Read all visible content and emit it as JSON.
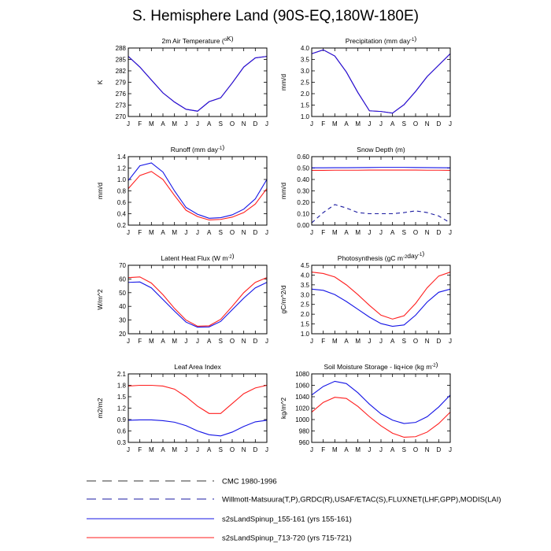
{
  "page": {
    "title": "S. Hemisphere Land (90S-EQ,180W-180E)"
  },
  "colors": {
    "blue": "#1414e6",
    "red": "#ff1e1e",
    "dashed_blue": "#1a1aa0",
    "dashed_black": "#333333"
  },
  "legend": [
    {
      "label": "CMC 1980-1996",
      "style": "dashed",
      "color": "#333333"
    },
    {
      "label": "Willmott-Matsuura(T,P),GRDC(R),USAF/ETAC(S),FLUXNET(LHF,GPP),MODIS(LAI)",
      "style": "dashed",
      "color": "#1a1aa0"
    },
    {
      "label": "s2sLandSpinup_155-161 (yrs 155-161)",
      "style": "solid",
      "color": "#1414e6"
    },
    {
      "label": "s2sLandSpinup_713-720 (yrs 715-721)",
      "style": "solid",
      "color": "#ff1e1e"
    }
  ],
  "chart_data": [
    {
      "type": "line",
      "title": "2m Air Temperature (°K)",
      "ylabel": "K",
      "x": [
        "J",
        "F",
        "M",
        "A",
        "M",
        "J",
        "J",
        "A",
        "S",
        "O",
        "N",
        "D",
        "J"
      ],
      "ylim": [
        270,
        288
      ],
      "yticks": [
        270,
        273,
        276,
        279,
        282,
        285,
        288
      ],
      "yticklabels": [
        "270",
        "273",
        "276",
        "279",
        "282",
        "285",
        "288"
      ],
      "series": [
        {
          "color": "#ff1e1e",
          "style": "solid",
          "values": [
            285.8,
            283.0,
            279.6,
            276.2,
            273.8,
            271.9,
            271.4,
            273.9,
            274.9,
            278.8,
            283.0,
            285.4,
            285.8
          ]
        },
        {
          "color": "#1414e6",
          "style": "solid",
          "values": [
            285.8,
            283.0,
            279.6,
            276.2,
            273.8,
            271.9,
            271.4,
            273.9,
            274.9,
            278.8,
            283.0,
            285.4,
            285.8
          ]
        }
      ]
    },
    {
      "type": "line",
      "title": "Precipitation (mm day-1)",
      "ylabel": "mm/d",
      "x": [
        "J",
        "F",
        "M",
        "A",
        "M",
        "J",
        "J",
        "A",
        "S",
        "O",
        "N",
        "D",
        "J"
      ],
      "ylim": [
        1.0,
        4.0
      ],
      "yticks": [
        1.0,
        1.5,
        2.0,
        2.5,
        3.0,
        3.5,
        4.0
      ],
      "yticklabels": [
        "1.0",
        "1.5",
        "2.0",
        "2.5",
        "3.0",
        "3.5",
        "4.0"
      ],
      "series": [
        {
          "color": "#ff1e1e",
          "style": "solid",
          "values": [
            3.75,
            3.92,
            3.65,
            2.95,
            2.05,
            1.25,
            1.22,
            1.15,
            1.52,
            2.1,
            2.75,
            3.25,
            3.75
          ]
        },
        {
          "color": "#1414e6",
          "style": "solid",
          "values": [
            3.75,
            3.92,
            3.65,
            2.95,
            2.05,
            1.25,
            1.22,
            1.15,
            1.52,
            2.1,
            2.75,
            3.25,
            3.75
          ]
        }
      ]
    },
    {
      "type": "line",
      "title": "Runoff (mm day-1)",
      "ylabel": "mm/d",
      "x": [
        "J",
        "F",
        "M",
        "A",
        "M",
        "J",
        "J",
        "A",
        "S",
        "O",
        "N",
        "D",
        "J"
      ],
      "ylim": [
        0.2,
        1.4
      ],
      "yticks": [
        0.2,
        0.4,
        0.6,
        0.8,
        1.0,
        1.2,
        1.4
      ],
      "yticklabels": [
        "0.2",
        "0.4",
        "0.6",
        "0.8",
        "1.0",
        "1.2",
        "1.4"
      ],
      "series": [
        {
          "color": "#1414e6",
          "style": "solid",
          "values": [
            0.98,
            1.24,
            1.29,
            1.13,
            0.8,
            0.51,
            0.39,
            0.32,
            0.33,
            0.38,
            0.48,
            0.66,
            1.0
          ]
        },
        {
          "color": "#ff1e1e",
          "style": "solid",
          "values": [
            0.84,
            1.07,
            1.14,
            1.0,
            0.72,
            0.46,
            0.35,
            0.29,
            0.3,
            0.34,
            0.42,
            0.57,
            0.84
          ]
        }
      ]
    },
    {
      "type": "line",
      "title": "Snow Depth (m)",
      "ylabel": "mm/d",
      "x": [
        "J",
        "F",
        "M",
        "A",
        "M",
        "J",
        "J",
        "A",
        "S",
        "O",
        "N",
        "D",
        "J"
      ],
      "ylim": [
        0.0,
        0.6
      ],
      "yticks": [
        0.0,
        0.1,
        0.2,
        0.3,
        0.4,
        0.5,
        0.6
      ],
      "yticklabels": [
        "0.00",
        "0.10",
        "0.20",
        "0.30",
        "0.40",
        "0.50",
        "0.60"
      ],
      "series": [
        {
          "color": "#1a1aa0",
          "style": "dashed",
          "values": [
            0.02,
            0.11,
            0.18,
            0.15,
            0.11,
            0.1,
            0.1,
            0.1,
            0.11,
            0.125,
            0.11,
            0.08,
            0.02
          ]
        },
        {
          "color": "#1414e6",
          "style": "solid",
          "values": [
            0.502,
            0.502,
            0.503,
            0.503,
            0.504,
            0.505,
            0.506,
            0.506,
            0.506,
            0.505,
            0.504,
            0.503,
            0.502
          ]
        },
        {
          "color": "#ff1e1e",
          "style": "solid",
          "values": [
            0.48,
            0.48,
            0.481,
            0.481,
            0.481,
            0.482,
            0.482,
            0.482,
            0.482,
            0.482,
            0.481,
            0.481,
            0.48
          ]
        }
      ]
    },
    {
      "type": "line",
      "title": "Latent Heat Flux (W m-2)",
      "ylabel": "W/m^2",
      "x": [
        "J",
        "F",
        "M",
        "A",
        "M",
        "J",
        "J",
        "A",
        "S",
        "O",
        "N",
        "D",
        "J"
      ],
      "ylim": [
        20,
        70
      ],
      "yticks": [
        20,
        30,
        40,
        50,
        60,
        70
      ],
      "yticklabels": [
        "20",
        "30",
        "40",
        "50",
        "60",
        "70"
      ],
      "series": [
        {
          "color": "#1414e6",
          "style": "solid",
          "values": [
            57.5,
            57.8,
            53.5,
            45.0,
            36.5,
            28.5,
            24.8,
            25.0,
            29.0,
            37.5,
            46.0,
            53.5,
            57.5
          ]
        },
        {
          "color": "#ff1e1e",
          "style": "solid",
          "values": [
            61.0,
            61.5,
            57.0,
            48.5,
            38.5,
            30.0,
            25.5,
            25.8,
            30.5,
            40.0,
            50.0,
            57.5,
            61.0
          ]
        }
      ]
    },
    {
      "type": "line",
      "title": "Photosynthesis (gC m-2day-1)",
      "ylabel": "gC/m^2/d",
      "x": [
        "J",
        "F",
        "M",
        "A",
        "M",
        "J",
        "J",
        "A",
        "S",
        "O",
        "N",
        "D",
        "J"
      ],
      "ylim": [
        1.0,
        4.5
      ],
      "yticks": [
        1.0,
        1.5,
        2.0,
        2.5,
        3.0,
        3.5,
        4.0,
        4.5
      ],
      "yticklabels": [
        "1.0",
        "1.5",
        "2.0",
        "2.5",
        "3.0",
        "3.5",
        "4.0",
        "4.5"
      ],
      "series": [
        {
          "color": "#1414e6",
          "style": "solid",
          "values": [
            3.28,
            3.22,
            3.0,
            2.65,
            2.25,
            1.85,
            1.52,
            1.38,
            1.45,
            1.95,
            2.62,
            3.12,
            3.28
          ]
        },
        {
          "color": "#ff1e1e",
          "style": "solid",
          "values": [
            4.15,
            4.08,
            3.9,
            3.5,
            3.0,
            2.45,
            1.95,
            1.75,
            1.92,
            2.55,
            3.35,
            3.95,
            4.15
          ]
        }
      ]
    },
    {
      "type": "line",
      "title": "Leaf Area Index",
      "ylabel": "m2/m2",
      "x": [
        "J",
        "F",
        "M",
        "A",
        "M",
        "J",
        "J",
        "A",
        "S",
        "O",
        "N",
        "D",
        "J"
      ],
      "ylim": [
        0.3,
        2.1
      ],
      "yticks": [
        0.3,
        0.6,
        0.9,
        1.2,
        1.5,
        1.8,
        2.1
      ],
      "yticklabels": [
        "0.3",
        "0.6",
        "0.9",
        "1.2",
        "1.5",
        "1.8",
        "2.1"
      ],
      "series": [
        {
          "color": "#1414e6",
          "style": "solid",
          "values": [
            0.88,
            0.89,
            0.89,
            0.87,
            0.83,
            0.74,
            0.6,
            0.5,
            0.47,
            0.57,
            0.72,
            0.84,
            0.88
          ]
        },
        {
          "color": "#ff1e1e",
          "style": "solid",
          "values": [
            1.78,
            1.8,
            1.8,
            1.78,
            1.7,
            1.5,
            1.25,
            1.06,
            1.06,
            1.32,
            1.58,
            1.73,
            1.8
          ]
        }
      ]
    },
    {
      "type": "line",
      "title": "Soil Moisture Storage - liq+ice (kg m-2)",
      "ylabel": "kg/m^2",
      "x": [
        "J",
        "F",
        "M",
        "A",
        "M",
        "J",
        "J",
        "A",
        "S",
        "O",
        "N",
        "D",
        "J"
      ],
      "ylim": [
        960,
        1080
      ],
      "yticks": [
        960,
        980,
        1000,
        1020,
        1040,
        1060,
        1080
      ],
      "yticklabels": [
        "960",
        "980",
        "1000",
        "1020",
        "1040",
        "1060",
        "1080"
      ],
      "series": [
        {
          "color": "#1414e6",
          "style": "solid",
          "values": [
            1043,
            1058,
            1067,
            1063,
            1047,
            1027,
            1010,
            999,
            993,
            995,
            1005,
            1022,
            1043
          ]
        },
        {
          "color": "#ff1e1e",
          "style": "solid",
          "values": [
            1013,
            1030,
            1039,
            1037,
            1023,
            1005,
            989,
            976,
            969,
            970,
            978,
            993,
            1013
          ]
        }
      ]
    }
  ]
}
